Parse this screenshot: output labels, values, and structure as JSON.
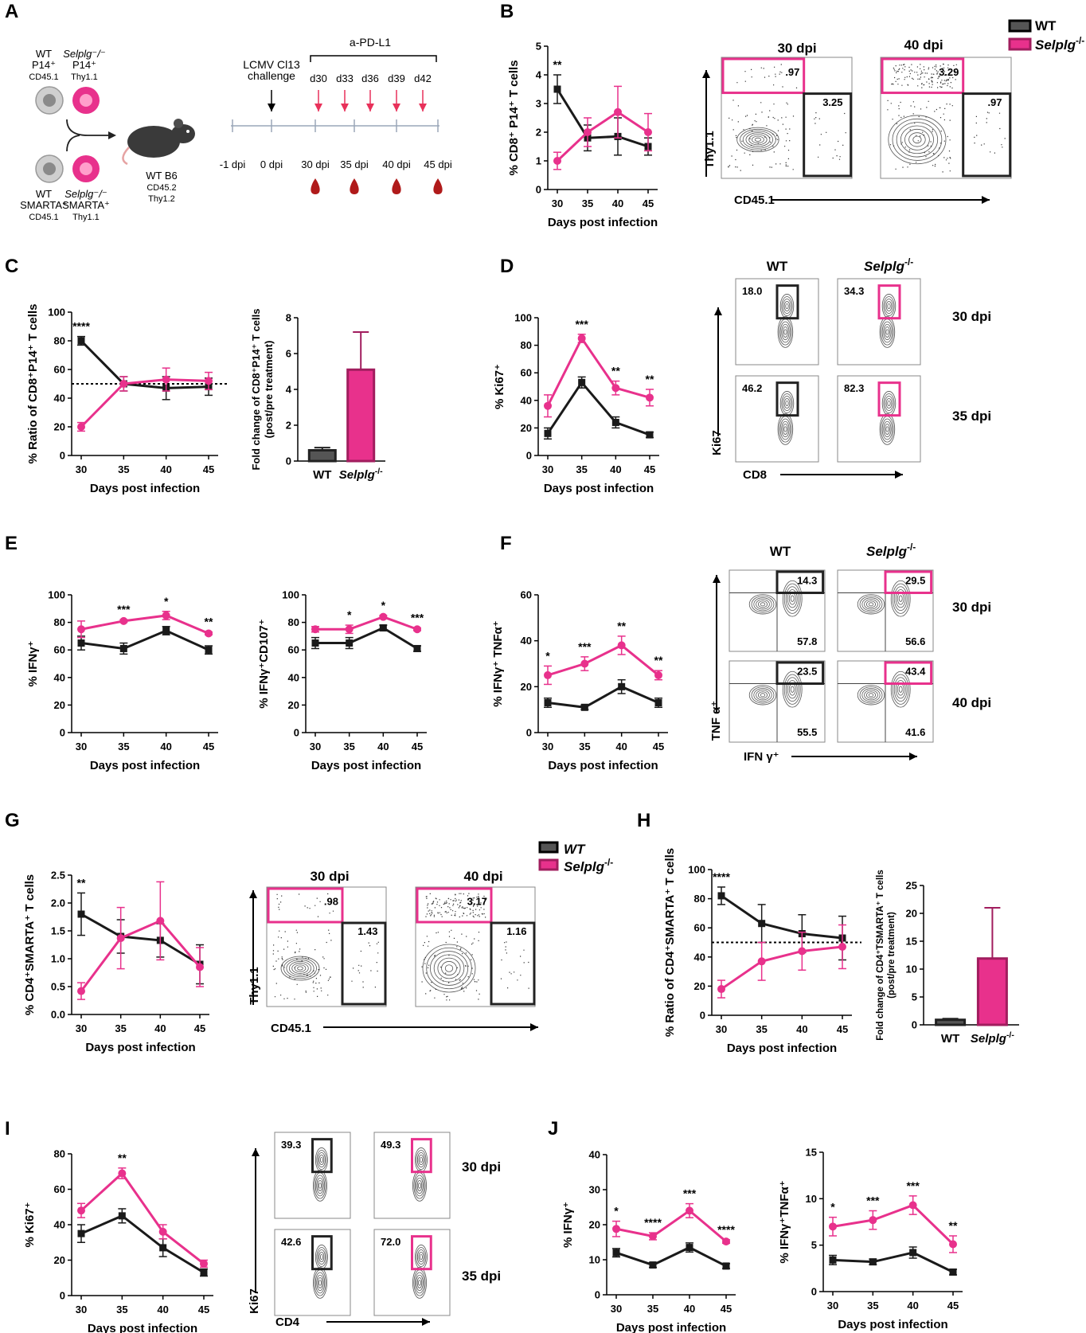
{
  "panel_labels": [
    "A",
    "B",
    "C",
    "D",
    "E",
    "F",
    "G",
    "H",
    "I",
    "J"
  ],
  "colors": {
    "wt": "#1a1a1a",
    "ko": "#e8318c",
    "ko_bar": "#e8318c",
    "ko_bar_edge": "#a11d5e",
    "wt_bar": "#555555",
    "blood": "#b01a1a",
    "arrow_red": "#e8315a",
    "timeline": "#9aa7b8"
  },
  "legend": {
    "wt": "WT",
    "ko": "Selplg",
    "ko_sup": "-/-"
  },
  "legend_g": {
    "wt": "WT",
    "ko": "Selplg",
    "ko_sup": "-/-"
  },
  "schematic": {
    "wt_p14": [
      "WT",
      "P14⁺",
      "CD45.1"
    ],
    "ko_p14": [
      "Selplg⁻/⁻",
      "P14⁺",
      "Thy1.1"
    ],
    "wt_smarta": [
      "WT",
      "SMARTA⁺",
      "CD45.1"
    ],
    "ko_smarta": [
      "Selplg⁻/⁻",
      "SMARTA⁺",
      "Thy1.1"
    ],
    "mouse": [
      "WT B6",
      "CD45.2",
      "Thy1.2"
    ],
    "challenge": [
      "LCMV Cl13",
      "challenge"
    ],
    "treatment": "a-PD-L1",
    "treatment_days": [
      "d30",
      "d33",
      "d36",
      "d39",
      "d42"
    ],
    "timeline": [
      "-1 dpi",
      "0 dpi",
      "30 dpi",
      "35 dpi",
      "40 dpi",
      "45 dpi"
    ]
  },
  "flow": {
    "B": {
      "cols": [
        "30 dpi",
        "40 dpi"
      ],
      "y_axis": "Thy1.1",
      "x_axis": "CD45.1",
      "gates": [
        [
          ".97",
          "3.25"
        ],
        [
          "3.29",
          ".97"
        ]
      ]
    },
    "D": {
      "cols": [
        "WT",
        "Selplg"
      ],
      "col_sup": "-/-",
      "rows": [
        "30 dpi",
        "35 dpi"
      ],
      "y_axis": "Ki67",
      "x_axis": "CD8",
      "gates": [
        [
          "18.0",
          "34.3"
        ],
        [
          "46.2",
          "82.3"
        ]
      ]
    },
    "F": {
      "cols": [
        "WT",
        "Selplg"
      ],
      "col_sup": "-/-",
      "rows": [
        "30 dpi",
        "40 dpi"
      ],
      "y_axis": "TNF α⁺",
      "x_axis": "IFN γ⁺",
      "gates": [
        [
          "14.3",
          "57.8",
          "29.5",
          "56.6"
        ],
        [
          "23.5",
          "55.5",
          "43.4",
          "41.6"
        ]
      ]
    },
    "G": {
      "cols": [
        "30 dpi",
        "40 dpi"
      ],
      "y_axis": "Thy1.1",
      "x_axis": "CD45.1",
      "gates": [
        [
          ".98",
          "1.43"
        ],
        [
          "3.17",
          "1.16"
        ]
      ]
    },
    "I": {
      "cols": [
        "WT",
        "Selplg"
      ],
      "col_sup": "-/-",
      "rows": [
        "30 dpi",
        "35 dpi"
      ],
      "y_axis": "Ki67",
      "x_axis": "CD4",
      "gates": [
        [
          "39.3",
          "49.3"
        ],
        [
          "42.6",
          "72.0"
        ]
      ]
    }
  },
  "chart_data": [
    {
      "id": "B",
      "type": "line",
      "title": "",
      "xlabel": "Days post infection",
      "ylabel": "% CD8⁺ P14⁺ T cells",
      "x": [
        30,
        35,
        40,
        45
      ],
      "ylim": [
        0,
        5
      ],
      "yticks": [
        0,
        1,
        2,
        3,
        4,
        5
      ],
      "series": [
        {
          "name": "WT",
          "values": [
            3.5,
            1.8,
            1.85,
            1.5
          ],
          "err": [
            0.5,
            0.45,
            0.65,
            0.3
          ]
        },
        {
          "name": "Selplg-/-",
          "values": [
            1.0,
            2.0,
            2.7,
            2.0
          ],
          "err": [
            0.3,
            0.5,
            0.9,
            0.65
          ]
        }
      ],
      "stars": [
        [
          "**",
          30
        ]
      ]
    },
    {
      "id": "C1",
      "type": "line",
      "xlabel": "Days post infection",
      "ylabel": "% Ratio of CD8⁺P14⁺ T cells",
      "x": [
        30,
        35,
        40,
        45
      ],
      "ylim": [
        0,
        100
      ],
      "yticks": [
        0,
        20,
        40,
        60,
        80,
        100
      ],
      "reference_line": 50,
      "series": [
        {
          "name": "WT",
          "values": [
            80,
            50,
            47,
            48
          ],
          "err": [
            3,
            5,
            8,
            6
          ]
        },
        {
          "name": "Selplg-/-",
          "values": [
            20,
            50,
            53,
            52
          ],
          "err": [
            3,
            5,
            8,
            6
          ]
        }
      ],
      "stars": [
        [
          "****",
          30
        ]
      ]
    },
    {
      "id": "C2",
      "type": "bar",
      "ylabel": "Fold change of CD8⁺P14⁺ T cells (post/pre treatment)",
      "categories": [
        "WT",
        "Selplg-/-"
      ],
      "values": [
        0.6,
        5.1
      ],
      "err": [
        0.15,
        2.1
      ],
      "ylim": [
        0,
        8
      ],
      "yticks": [
        0,
        2,
        4,
        6,
        8
      ]
    },
    {
      "id": "D",
      "type": "line",
      "xlabel": "Days post infection",
      "ylabel": "% Ki67⁺",
      "x": [
        30,
        35,
        40,
        45
      ],
      "ylim": [
        0,
        100
      ],
      "yticks": [
        0,
        20,
        40,
        60,
        80,
        100
      ],
      "series": [
        {
          "name": "WT",
          "values": [
            16,
            53,
            24,
            15
          ],
          "err": [
            4,
            4,
            4,
            2
          ]
        },
        {
          "name": "Selplg-/-",
          "values": [
            36,
            85,
            49,
            42
          ],
          "err": [
            8,
            3,
            5,
            6
          ]
        }
      ],
      "stars": [
        [
          "***",
          35
        ],
        [
          "**",
          40
        ],
        [
          "**",
          45
        ]
      ]
    },
    {
      "id": "E1",
      "type": "line",
      "xlabel": "Days post infection",
      "ylabel": "% IFNγ⁺",
      "x": [
        30,
        35,
        40,
        45
      ],
      "ylim": [
        0,
        100
      ],
      "yticks": [
        0,
        20,
        40,
        60,
        80,
        100
      ],
      "series": [
        {
          "name": "WT",
          "values": [
            65,
            61,
            74,
            60
          ],
          "err": [
            5,
            4,
            3,
            3
          ]
        },
        {
          "name": "Selplg-/-",
          "values": [
            75,
            81,
            85,
            72
          ],
          "err": [
            6,
            1,
            3,
            1
          ]
        }
      ],
      "stars": [
        [
          "***",
          35
        ],
        [
          "*",
          40
        ],
        [
          "**",
          45
        ]
      ]
    },
    {
      "id": "E2",
      "type": "line",
      "xlabel": "Days post infection",
      "ylabel": "% IFNγ⁺CD107⁺",
      "x": [
        30,
        35,
        40,
        45
      ],
      "ylim": [
        0,
        100
      ],
      "yticks": [
        0,
        20,
        40,
        60,
        80,
        100
      ],
      "series": [
        {
          "name": "WT",
          "values": [
            65,
            65,
            76,
            61
          ],
          "err": [
            4,
            4,
            2,
            2
          ]
        },
        {
          "name": "Selplg-/-",
          "values": [
            75,
            75,
            84,
            75
          ],
          "err": [
            2,
            3,
            1,
            1
          ]
        }
      ],
      "stars": [
        [
          "*",
          35
        ],
        [
          "*",
          40
        ],
        [
          "***",
          45
        ]
      ]
    },
    {
      "id": "F",
      "type": "line",
      "xlabel": "Days post infection",
      "ylabel": "% IFNγ⁺ TNFα⁺",
      "x": [
        30,
        35,
        40,
        45
      ],
      "ylim": [
        0,
        60
      ],
      "yticks": [
        0,
        20,
        40,
        60
      ],
      "series": [
        {
          "name": "WT",
          "values": [
            13,
            11,
            20,
            13
          ],
          "err": [
            2,
            1,
            3,
            2
          ]
        },
        {
          "name": "Selplg-/-",
          "values": [
            25,
            30,
            38,
            25
          ],
          "err": [
            4,
            3,
            4,
            2
          ]
        }
      ],
      "stars": [
        [
          "*",
          30
        ],
        [
          "***",
          35
        ],
        [
          "**",
          40
        ],
        [
          "**",
          45
        ]
      ]
    },
    {
      "id": "G",
      "type": "line",
      "xlabel": "Days post infection",
      "ylabel": "% CD4⁺SMARTA⁺ T cells",
      "x": [
        30,
        35,
        40,
        45
      ],
      "ylim": [
        0,
        2.5
      ],
      "yticks": [
        0.0,
        0.5,
        1.0,
        1.5,
        2.0,
        2.5
      ],
      "series": [
        {
          "name": "WT",
          "values": [
            1.8,
            1.4,
            1.33,
            0.9
          ],
          "err": [
            0.38,
            0.3,
            0.3,
            0.35
          ]
        },
        {
          "name": "Selplg-/-",
          "values": [
            0.42,
            1.37,
            1.68,
            0.85
          ],
          "err": [
            0.15,
            0.55,
            0.7,
            0.35
          ]
        }
      ],
      "stars": [
        [
          "**",
          30
        ]
      ]
    },
    {
      "id": "H1",
      "type": "line",
      "xlabel": "Days post infection",
      "ylabel": "% Ratio of CD4⁺SMARTA⁺ T cells",
      "x": [
        30,
        35,
        40,
        45
      ],
      "ylim": [
        0,
        100
      ],
      "yticks": [
        0,
        20,
        40,
        60,
        80,
        100
      ],
      "reference_line": 50,
      "series": [
        {
          "name": "WT",
          "values": [
            82,
            63,
            56,
            53
          ],
          "err": [
            6,
            13,
            13,
            15
          ]
        },
        {
          "name": "Selplg-/-",
          "values": [
            18,
            37,
            44,
            47
          ],
          "err": [
            6,
            13,
            13,
            15
          ]
        }
      ],
      "stars": [
        [
          "****",
          30
        ]
      ]
    },
    {
      "id": "H2",
      "type": "bar",
      "ylabel": "Fold change of CD4⁺TSMARTA⁺ T cells (post/pre treatment)",
      "categories": [
        "WT",
        "Selplg-/-"
      ],
      "values": [
        0.9,
        11.9
      ],
      "err": [
        0.2,
        9.1
      ],
      "ylim": [
        0,
        25
      ],
      "yticks": [
        0,
        5,
        10,
        15,
        20,
        25
      ]
    },
    {
      "id": "I",
      "type": "line",
      "xlabel": "Days post infection",
      "ylabel": "% Ki67⁺",
      "x": [
        30,
        35,
        40,
        45
      ],
      "ylim": [
        0,
        80
      ],
      "yticks": [
        0,
        20,
        40,
        60,
        80
      ],
      "series": [
        {
          "name": "WT",
          "values": [
            35,
            45,
            27,
            13
          ],
          "err": [
            5,
            4,
            5,
            2
          ]
        },
        {
          "name": "Selplg-/-",
          "values": [
            48,
            69,
            36,
            18
          ],
          "err": [
            4,
            3,
            4,
            2
          ]
        }
      ],
      "stars": [
        [
          "**",
          35
        ]
      ]
    },
    {
      "id": "J1",
      "type": "line",
      "xlabel": "Days post infection",
      "ylabel": "% IFNγ⁺",
      "x": [
        30,
        35,
        40,
        45
      ],
      "ylim": [
        0,
        40
      ],
      "yticks": [
        0,
        10,
        20,
        30,
        40
      ],
      "series": [
        {
          "name": "WT",
          "values": [
            12,
            8.5,
            13.5,
            8.2
          ],
          "err": [
            1.2,
            0.7,
            1.3,
            0.7
          ]
        },
        {
          "name": "Selplg-/-",
          "values": [
            18.8,
            16.7,
            24,
            15.2
          ],
          "err": [
            2.2,
            1,
            2,
            0.5
          ]
        }
      ],
      "stars": [
        [
          "*",
          30
        ],
        [
          "****",
          35
        ],
        [
          "***",
          40
        ],
        [
          "****",
          45
        ]
      ]
    },
    {
      "id": "J2",
      "type": "line",
      "xlabel": "Days post infection",
      "ylabel": "% IFNγ⁺TNFα⁺",
      "x": [
        30,
        35,
        40,
        45
      ],
      "ylim": [
        0,
        15
      ],
      "yticks": [
        0,
        5,
        10,
        15
      ],
      "series": [
        {
          "name": "WT",
          "values": [
            3.4,
            3.2,
            4.2,
            2.1
          ],
          "err": [
            0.5,
            0.3,
            0.6,
            0.3
          ]
        },
        {
          "name": "Selplg-/-",
          "values": [
            7.0,
            7.7,
            9.3,
            5.1
          ],
          "err": [
            1.0,
            1.0,
            1.0,
            0.9
          ]
        }
      ],
      "stars": [
        [
          "*",
          30
        ],
        [
          "***",
          35
        ],
        [
          "***",
          40
        ],
        [
          "**",
          45
        ]
      ]
    }
  ]
}
